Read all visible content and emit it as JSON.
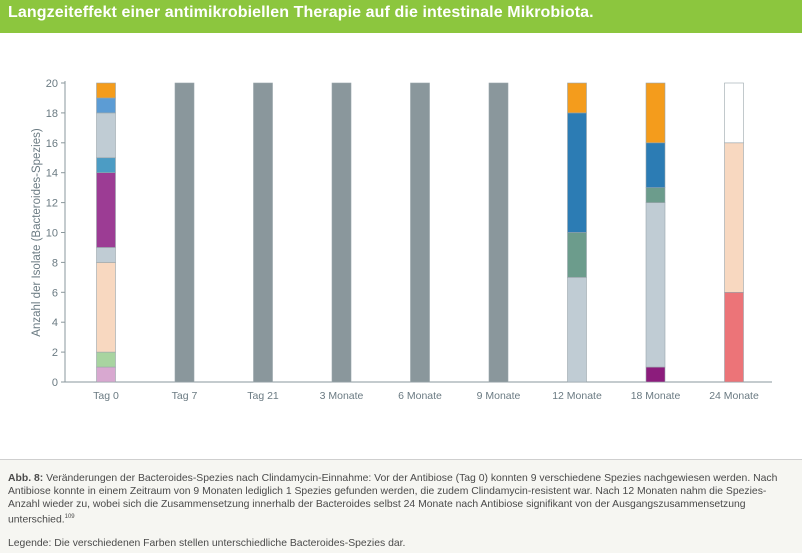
{
  "header": {
    "title": "Langzeiteffekt einer antimikrobiellen Therapie auf die intestinale Mikrobiota."
  },
  "chart_data": {
    "type": "bar",
    "stacked": true,
    "ylabel": "Anzahl der Isolate (Bacteroides-Spezies)",
    "ylim": [
      0,
      20
    ],
    "yticks": [
      0,
      2,
      4,
      6,
      8,
      10,
      12,
      14,
      16,
      18,
      20
    ],
    "categories": [
      "Tag 0",
      "Tag 7",
      "Tag 21",
      "3 Monate",
      "6 Monate",
      "9 Monate",
      "12 Monate",
      "18 Monate",
      "24 Monate"
    ],
    "stacks": [
      [
        {
          "value": 1,
          "color": "#d8a8d0"
        },
        {
          "value": 1,
          "color": "#a8d4a0"
        },
        {
          "value": 6,
          "color": "#f8d8c0"
        },
        {
          "value": 1,
          "color": "#c0ccd4"
        },
        {
          "value": 5,
          "color": "#9c3c94"
        },
        {
          "value": 1,
          "color": "#4c9cc4"
        },
        {
          "value": 3,
          "color": "#c0ccd4"
        },
        {
          "value": 1,
          "color": "#5c9cd4"
        },
        {
          "value": 1,
          "color": "#f49c1c"
        }
      ],
      [
        {
          "value": 20,
          "color": "#8a979c"
        }
      ],
      [
        {
          "value": 20,
          "color": "#8a979c"
        }
      ],
      [
        {
          "value": 20,
          "color": "#8a979c"
        }
      ],
      [
        {
          "value": 20,
          "color": "#8a979c"
        }
      ],
      [
        {
          "value": 20,
          "color": "#8a979c"
        }
      ],
      [
        {
          "value": 7,
          "color": "#c0ccd4"
        },
        {
          "value": 3,
          "color": "#6c9c8c"
        },
        {
          "value": 8,
          "color": "#2c7cb4"
        },
        {
          "value": 2,
          "color": "#f49c1c"
        }
      ],
      [
        {
          "value": 1,
          "color": "#8c1c7c"
        },
        {
          "value": 11,
          "color": "#c0ccd4"
        },
        {
          "value": 1,
          "color": "#6c9c8c"
        },
        {
          "value": 3,
          "color": "#2c7cb4"
        },
        {
          "value": 4,
          "color": "#f49c1c"
        }
      ],
      [
        {
          "value": 6,
          "color": "#ec7478"
        },
        {
          "value": 10,
          "color": "#f8d8c0"
        },
        {
          "value": 4,
          "color": "#ffffff"
        }
      ]
    ],
    "axis_color": "#8a979c",
    "tick_label_color": "#6a7a82",
    "panel_background": "#ffffff"
  },
  "caption": {
    "label": "Abb. 8:",
    "text": " Veränderungen der Bacteroides-Spezies nach Clindamycin-Einnahme: Vor der Antibiose (Tag 0) konnten 9 verschiedene Spezies nachgewiesen werden. Nach Antibiose konnte in einem Zeitraum von 9 Monaten lediglich 1 Spezies gefunden werden, die zudem Clindamycin-resistent war. Nach 12 Monaten nahm die Spezies-Anzahl wieder zu, wobei sich die Zusammensetzung innerhalb der Bacteroides selbst 24 Monate nach Antibiose signifikant von der Ausgangszusammensetzung unterschied.",
    "ref": "109",
    "legend": "Legende: Die verschiedenen Farben stellen unterschiedliche Bacteroides-Spezies dar."
  },
  "colors": {
    "header_bg": "#8cc63e",
    "page_bg": "#f6f6f2"
  }
}
